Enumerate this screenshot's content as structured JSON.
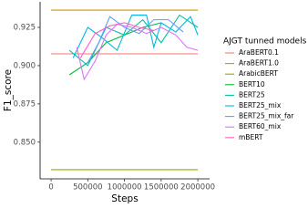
{
  "chart_data": {
    "type": "line",
    "x_label": "Steps",
    "y_label": "F1_score",
    "legend_title": "AJGT tunned models",
    "xlim": [
      -150000,
      2160000
    ],
    "ylim": [
      0.826,
      0.9417
    ],
    "xticks": [
      0,
      500000,
      1000000,
      1500000,
      2000000
    ],
    "yticks": [
      {
        "value": 0.85,
        "label": "0.850"
      },
      0.875,
      {
        "value": 0.9,
        "label": "0.900"
      },
      0.925
    ],
    "grid": false,
    "legend": "right",
    "series": [
      {
        "name": "AraBERT0.1",
        "color": "#F8766D",
        "x": [
          0,
          2000000
        ],
        "values": [
          0.9077,
          0.9077
        ]
      },
      {
        "name": "AraBERT1.0",
        "color": "#D39200",
        "x": [
          0,
          2000000
        ],
        "values": [
          0.9363,
          0.9363
        ]
      },
      {
        "name": "ArabicBERT",
        "color": "#93AA00",
        "x": [
          0,
          2000000
        ],
        "values": [
          0.832,
          0.832
        ]
      },
      {
        "name": "BERT10",
        "color": "#00BA38",
        "x": [
          250000,
          500000,
          750000,
          1000000,
          1250000,
          1500000
        ],
        "values": [
          0.894,
          0.902,
          0.915,
          0.92,
          0.925,
          0.928
        ]
      },
      {
        "name": "BERT25",
        "color": "#00C19F",
        "x": [
          250000,
          500000,
          750000,
          1000000,
          1250000,
          1500000,
          1750000,
          2000000
        ],
        "values": [
          0.91,
          0.9,
          0.925,
          0.92,
          0.93,
          0.915,
          0.933,
          0.925
        ]
      },
      {
        "name": "BERT25_mix",
        "color": "#00B9E3",
        "x": [
          300000,
          500000,
          700000,
          900000,
          1100000,
          1300000,
          1400000,
          1500000,
          1700000,
          1900000,
          2000000
        ],
        "values": [
          0.905,
          0.925,
          0.918,
          0.91,
          0.933,
          0.933,
          0.912,
          0.928,
          0.922,
          0.932,
          0.92
        ]
      },
      {
        "name": "BERT25_mix_far",
        "color": "#619CFF",
        "x": [
          500000,
          650000,
          800000,
          1000000,
          1200000,
          1400000,
          1600000,
          1800000
        ],
        "values": [
          0.902,
          0.915,
          0.932,
          0.925,
          0.921,
          0.93,
          0.93,
          0.922
        ]
      },
      {
        "name": "BERT60_mix",
        "color": "#DB72FB",
        "x": [
          350000,
          450000,
          600000,
          750000,
          900000,
          1100000,
          1300000,
          1500000,
          1700000,
          1850000,
          2000000
        ],
        "values": [
          0.912,
          0.891,
          0.903,
          0.92,
          0.927,
          0.925,
          0.921,
          0.925,
          0.92,
          0.912,
          0.91
        ]
      },
      {
        "name": "mBERT",
        "color": "#FF61C3",
        "x": [
          400000,
          600000,
          800000,
          1000000,
          1200000,
          1400000
        ],
        "values": [
          0.905,
          0.921,
          0.926,
          0.928,
          0.925,
          0.923
        ]
      }
    ]
  }
}
